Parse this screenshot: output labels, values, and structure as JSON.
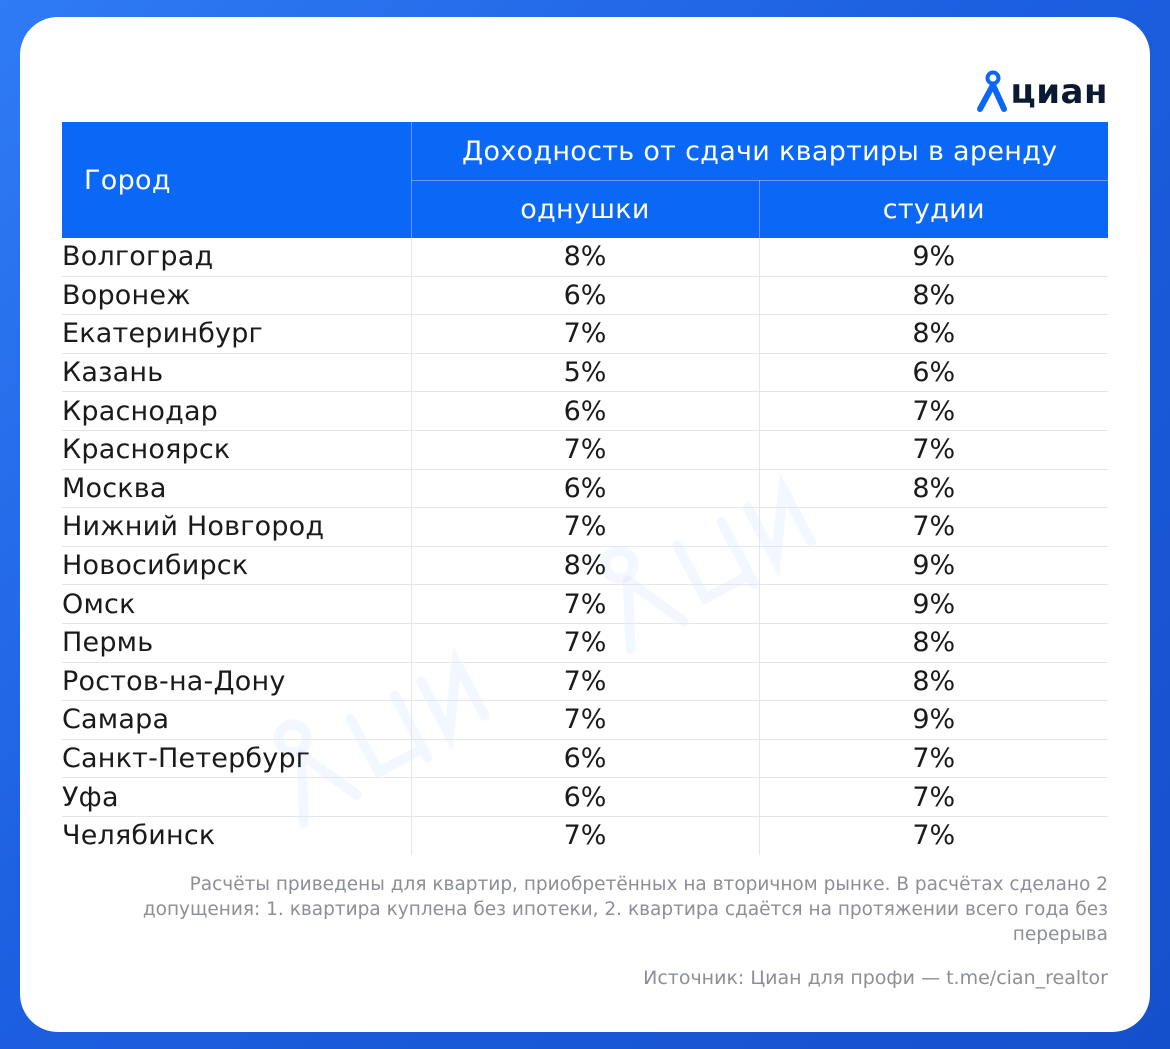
{
  "logo": {
    "text": "циан",
    "icon": "cian-pin-logo-icon"
  },
  "colors": {
    "header_bg": "#0b68f6",
    "page_bg": "#1c5fe0",
    "text": "#1a1a1a",
    "note": "#8a8f98"
  },
  "table": {
    "city_header": "Город",
    "group_header": "Доходность от сдачи квартиры в аренду",
    "sub_headers": [
      "однушки",
      "студии"
    ]
  },
  "chart_data": {
    "type": "table",
    "columns": [
      "Город",
      "однушки",
      "студии"
    ],
    "rows": [
      {
        "city": "Волгоград",
        "one_room": "8%",
        "studio": "9%"
      },
      {
        "city": "Воронеж",
        "one_room": "6%",
        "studio": "8%"
      },
      {
        "city": "Екатеринбург",
        "one_room": "7%",
        "studio": "8%"
      },
      {
        "city": "Казань",
        "one_room": "5%",
        "studio": "6%"
      },
      {
        "city": "Краснодар",
        "one_room": "6%",
        "studio": "7%"
      },
      {
        "city": "Красноярск",
        "one_room": "7%",
        "studio": "7%"
      },
      {
        "city": "Москва",
        "one_room": "6%",
        "studio": "8%"
      },
      {
        "city": "Нижний Новгород",
        "one_room": "7%",
        "studio": "7%"
      },
      {
        "city": "Новосибирск",
        "one_room": "8%",
        "studio": "9%"
      },
      {
        "city": "Омск",
        "one_room": "7%",
        "studio": "9%"
      },
      {
        "city": "Пермь",
        "one_room": "7%",
        "studio": "8%"
      },
      {
        "city": "Ростов-на-Дону",
        "one_room": "7%",
        "studio": "8%"
      },
      {
        "city": "Самара",
        "one_room": "7%",
        "studio": "9%"
      },
      {
        "city": "Санкт-Петербург",
        "one_room": "6%",
        "studio": "7%"
      },
      {
        "city": "Уфа",
        "one_room": "6%",
        "studio": "7%"
      },
      {
        "city": "Челябинск",
        "one_room": "7%",
        "studio": "7%"
      }
    ]
  },
  "footnote": "Расчёты приведены для квартир, приобретённых на вторичном рынке. В расчётах сделано 2 допущения: 1. квартира куплена без ипотеки, 2. квартира сдаётся на протяжении всего года без перерыва",
  "source": "Источник: Циан для профи — t.me/cian_realtor"
}
